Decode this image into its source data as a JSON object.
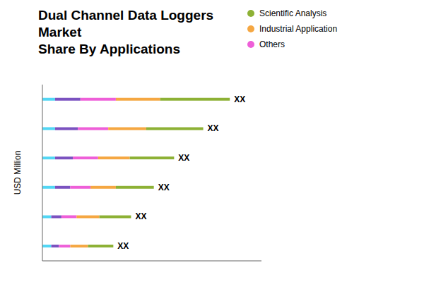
{
  "chart_data": {
    "type": "bar",
    "orientation": "horizontal",
    "stacked": true,
    "title": "Dual Channel Data Loggers Market\nShare By Applications",
    "ylabel": "USD Million",
    "categories": [
      null,
      null,
      null,
      null,
      null,
      null
    ],
    "series": [
      {
        "color": "#52D6F4",
        "values": [
          1.0,
          1.0,
          1.0,
          1.0,
          0.7,
          0.7
        ]
      },
      {
        "color": "#7B52C0",
        "values": [
          2.0,
          1.8,
          1.4,
          1.2,
          0.8,
          0.6
        ]
      },
      {
        "name": "Others",
        "color": "#EE5FD8",
        "values": [
          2.8,
          2.4,
          2.0,
          1.6,
          1.2,
          0.9
        ]
      },
      {
        "name": "Industrial Application",
        "color": "#F5A742",
        "values": [
          3.5,
          3.0,
          2.5,
          2.0,
          1.8,
          1.4
        ]
      },
      {
        "name": "Scientific Analysis",
        "color": "#8DB135",
        "values": [
          5.5,
          4.5,
          3.5,
          3.0,
          2.5,
          2.0
        ]
      }
    ],
    "xlim": [
      0,
      17.3
    ],
    "tick_labels": false,
    "grid": false,
    "legend": "upper right",
    "annotations": [
      "XX",
      "XX",
      "XX",
      "XX",
      "XX",
      "XX"
    ]
  }
}
